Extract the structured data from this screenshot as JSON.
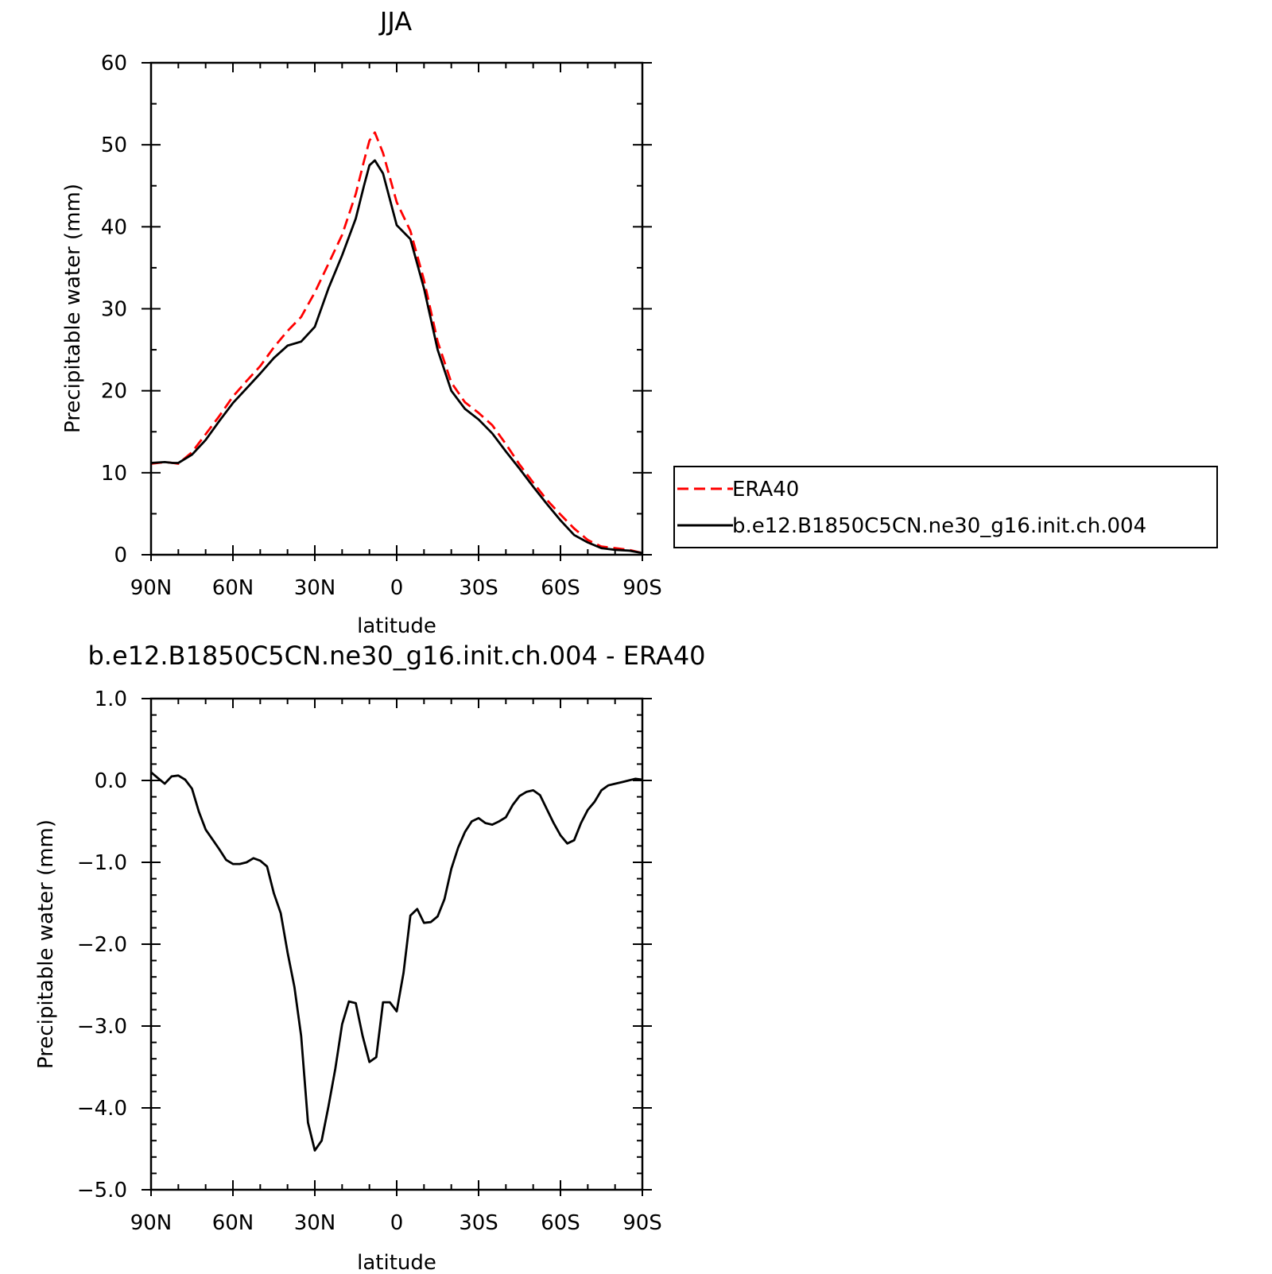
{
  "chart_data": [
    {
      "type": "line",
      "title": "JJA",
      "xlabel": "latitude",
      "ylabel": "Precipitable water (mm)",
      "xlim": [
        90,
        -90
      ],
      "ylim": [
        0,
        60
      ],
      "x_ticks": [
        {
          "value": 90,
          "label": "90N"
        },
        {
          "value": 60,
          "label": "60N"
        },
        {
          "value": 30,
          "label": "30N"
        },
        {
          "value": 0,
          "label": "0"
        },
        {
          "value": -30,
          "label": "30S"
        },
        {
          "value": -60,
          "label": "60S"
        },
        {
          "value": -90,
          "label": "90S"
        }
      ],
      "y_ticks": [
        {
          "value": 0,
          "label": "0"
        },
        {
          "value": 10,
          "label": "10"
        },
        {
          "value": 20,
          "label": "20"
        },
        {
          "value": 30,
          "label": "30"
        },
        {
          "value": 40,
          "label": "40"
        },
        {
          "value": 50,
          "label": "50"
        },
        {
          "value": 60,
          "label": "60"
        }
      ],
      "legend_position": "right",
      "series": [
        {
          "name": "ERA40",
          "color": "#ff0000",
          "dash": "dashed",
          "x": [
            90,
            85,
            82,
            80,
            75,
            70,
            65,
            60,
            55,
            50,
            45,
            40,
            35,
            30,
            25,
            20,
            15,
            12,
            10,
            8,
            5,
            0,
            -5,
            -10,
            -15,
            -20,
            -25,
            -30,
            -35,
            -40,
            -45,
            -50,
            -55,
            -60,
            -65,
            -70,
            -75,
            -80,
            -85,
            -90
          ],
          "y": [
            11.1,
            11.3,
            11.2,
            11.1,
            12.5,
            14.7,
            16.9,
            19.3,
            21.2,
            23.0,
            25.3,
            27.3,
            29.0,
            32.0,
            35.5,
            39.0,
            44.0,
            48.0,
            50.5,
            51.5,
            49.0,
            43.0,
            39.5,
            33.5,
            26.0,
            21.0,
            18.6,
            17.3,
            15.8,
            13.5,
            11.0,
            8.8,
            6.7,
            4.9,
            3.2,
            1.8,
            1.0,
            0.8,
            0.6,
            0.2
          ]
        },
        {
          "name": "b.e12.B1850C5CN.ne30_g16.init.ch.004",
          "color": "#000000",
          "dash": "solid",
          "x": [
            90,
            85,
            82,
            80,
            75,
            70,
            65,
            60,
            55,
            50,
            45,
            40,
            35,
            30,
            25,
            20,
            15,
            12,
            10,
            8,
            5,
            0,
            -5,
            -10,
            -15,
            -20,
            -25,
            -30,
            -35,
            -40,
            -45,
            -50,
            -55,
            -60,
            -65,
            -70,
            -75,
            -80,
            -85,
            -90
          ],
          "y": [
            11.2,
            11.3,
            11.2,
            11.2,
            12.2,
            14.0,
            16.3,
            18.5,
            20.3,
            22.1,
            24.0,
            25.5,
            26.0,
            27.8,
            32.5,
            36.5,
            41.0,
            45.0,
            47.5,
            48.1,
            46.5,
            40.2,
            38.5,
            32.5,
            25.0,
            20.0,
            17.8,
            16.5,
            14.8,
            12.6,
            10.5,
            8.3,
            6.2,
            4.2,
            2.4,
            1.5,
            0.8,
            0.6,
            0.5,
            0.2
          ]
        }
      ]
    },
    {
      "type": "line",
      "title": "b.e12.B1850C5CN.ne30_g16.init.ch.004 - ERA40",
      "xlabel": "latitude",
      "ylabel": "Precipitable water (mm)",
      "xlim": [
        90,
        -90
      ],
      "ylim": [
        -5,
        1
      ],
      "x_ticks": [
        {
          "value": 90,
          "label": "90N"
        },
        {
          "value": 60,
          "label": "60N"
        },
        {
          "value": 30,
          "label": "30N"
        },
        {
          "value": 0,
          "label": "0"
        },
        {
          "value": -30,
          "label": "30S"
        },
        {
          "value": -60,
          "label": "60S"
        },
        {
          "value": -90,
          "label": "90S"
        }
      ],
      "y_ticks": [
        {
          "value": 1,
          "label": "1.0"
        },
        {
          "value": 0,
          "label": "0.0"
        },
        {
          "value": -1,
          "label": "−1.0"
        },
        {
          "value": -2,
          "label": "−2.0"
        },
        {
          "value": -3,
          "label": "−3.0"
        },
        {
          "value": -4,
          "label": "−4.0"
        },
        {
          "value": -5,
          "label": "−5.0"
        }
      ],
      "series": [
        {
          "color": "#000000",
          "dash": "solid",
          "x": [
            90,
            87.5,
            85,
            82.5,
            80,
            77.5,
            75,
            72.5,
            70,
            67.5,
            65,
            62.5,
            60,
            57.5,
            55,
            52.5,
            50,
            47.5,
            45,
            42.5,
            40,
            37.5,
            35,
            32.5,
            30,
            27.5,
            25,
            22.5,
            20,
            17.5,
            15,
            12.5,
            10,
            7.5,
            5,
            2.5,
            0,
            -2.5,
            -5,
            -7.5,
            -10,
            -12.5,
            -15,
            -17.5,
            -20,
            -22.5,
            -25,
            -27.5,
            -30,
            -32.5,
            -35,
            -37.5,
            -40,
            -42.5,
            -45,
            -47.5,
            -50,
            -52.5,
            -55,
            -57.5,
            -60,
            -62.5,
            -65,
            -67.5,
            -70,
            -72.5,
            -75,
            -77.5,
            -80,
            -82.5,
            -85,
            -87.5,
            -90
          ],
          "y": [
            0.1,
            0.03,
            -0.04,
            0.05,
            0.06,
            0.01,
            -0.1,
            -0.38,
            -0.6,
            -0.72,
            -0.84,
            -0.97,
            -1.02,
            -1.02,
            -1.0,
            -0.95,
            -0.98,
            -1.05,
            -1.38,
            -1.62,
            -2.1,
            -2.52,
            -3.12,
            -4.18,
            -4.52,
            -4.4,
            -3.98,
            -3.52,
            -2.98,
            -2.7,
            -2.72,
            -3.12,
            -3.44,
            -3.38,
            -2.71,
            -2.71,
            -2.82,
            -2.35,
            -1.65,
            -1.57,
            -1.74,
            -1.73,
            -1.66,
            -1.45,
            -1.08,
            -0.82,
            -0.63,
            -0.5,
            -0.46,
            -0.52,
            -0.54,
            -0.5,
            -0.45,
            -0.3,
            -0.19,
            -0.14,
            -0.12,
            -0.18,
            -0.35,
            -0.52,
            -0.67,
            -0.77,
            -0.73,
            -0.52,
            -0.36,
            -0.26,
            -0.12,
            -0.06,
            -0.04,
            -0.02,
            0.0,
            0.02,
            0.01
          ]
        }
      ]
    }
  ]
}
